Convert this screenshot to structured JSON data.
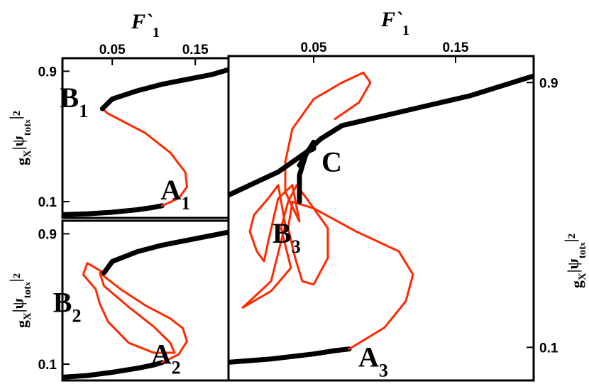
{
  "chart_data": [
    {
      "type": "line",
      "panel": "top-left",
      "xlabel": {
        "symbol": "F`",
        "subscript": "1"
      },
      "ylabel": {
        "base": "g",
        "sub1": "X",
        "abs": "|ψ",
        "sub2": "tot",
        "sub3": "x",
        "close": "|",
        "sup": "2"
      },
      "xticks": [
        {
          "value": 0.05,
          "label": "0.05"
        },
        {
          "value": 0.15,
          "label": "0.15"
        }
      ],
      "yticks": [
        {
          "value": 0.9,
          "label": "0.9"
        },
        {
          "value": 0.1,
          "label": "0.1"
        }
      ],
      "xlim": [
        -0.01,
        0.19
      ],
      "ylim": [
        0.0,
        0.98
      ],
      "colors": {
        "stable": "#000000",
        "unstable": "#ff2a00"
      },
      "points": [
        {
          "name": "B",
          "sub": "1",
          "x": 0.04,
          "y": 0.68
        },
        {
          "name": "A",
          "sub": "1",
          "x": 0.11,
          "y": 0.07
        }
      ],
      "series": [
        {
          "stability": "stable",
          "x": [
            -0.01,
            0.02,
            0.05,
            0.08,
            0.1,
            0.11
          ],
          "y": [
            0.02,
            0.025,
            0.035,
            0.05,
            0.065,
            0.075
          ]
        },
        {
          "stability": "unstable",
          "x": [
            0.11,
            0.13,
            0.14,
            0.138,
            0.12,
            0.09,
            0.06,
            0.045,
            0.038
          ],
          "y": [
            0.075,
            0.12,
            0.19,
            0.28,
            0.4,
            0.52,
            0.6,
            0.64,
            0.67
          ]
        },
        {
          "stability": "stable",
          "x": [
            0.038,
            0.05,
            0.08,
            0.11,
            0.14,
            0.17,
            0.19
          ],
          "y": [
            0.67,
            0.73,
            0.78,
            0.82,
            0.85,
            0.88,
            0.91
          ]
        }
      ]
    },
    {
      "type": "line",
      "panel": "bottom-left",
      "ylabel": {
        "base": "g",
        "sub1": "X",
        "abs": "|ψ",
        "sub2": "tot",
        "sub3": "x",
        "close": "|",
        "sup": "2"
      },
      "yticks": [
        {
          "value": 0.9,
          "label": "0.9"
        },
        {
          "value": 0.1,
          "label": "0.1"
        }
      ],
      "xlim": [
        -0.01,
        0.19
      ],
      "ylim": [
        0.0,
        0.98
      ],
      "colors": {
        "stable": "#000000",
        "unstable": "#ff2a00"
      },
      "points": [
        {
          "name": "B",
          "sub": "2",
          "x": 0.03,
          "y": 0.43
        },
        {
          "name": "A",
          "sub": "2",
          "x": 0.1,
          "y": 0.11
        }
      ],
      "series": [
        {
          "stability": "stable",
          "x": [
            -0.01,
            0.02,
            0.05,
            0.08,
            0.1,
            0.11
          ],
          "y": [
            0.02,
            0.03,
            0.05,
            0.075,
            0.095,
            0.11
          ]
        },
        {
          "stability": "unstable",
          "x": [
            0.11,
            0.13,
            0.14,
            0.135,
            0.12,
            0.09,
            0.06,
            0.045,
            0.035,
            0.04,
            0.07,
            0.1,
            0.12,
            0.125,
            0.1,
            0.07,
            0.045,
            0.035,
            0.03,
            0.015,
            0.02,
            0.04
          ],
          "y": [
            0.11,
            0.16,
            0.24,
            0.32,
            0.38,
            0.46,
            0.56,
            0.62,
            0.66,
            0.58,
            0.45,
            0.33,
            0.23,
            0.17,
            0.17,
            0.23,
            0.36,
            0.47,
            0.56,
            0.65,
            0.72,
            0.66
          ]
        },
        {
          "stability": "stable",
          "x": [
            0.04,
            0.05,
            0.08,
            0.11,
            0.14,
            0.17,
            0.19
          ],
          "y": [
            0.66,
            0.73,
            0.79,
            0.83,
            0.86,
            0.89,
            0.91
          ]
        }
      ]
    },
    {
      "type": "line",
      "panel": "right",
      "xlabel": {
        "symbol": "F`",
        "subscript": "1"
      },
      "ylabel": {
        "base": "g",
        "sub1": "X",
        "abs": "|ψ",
        "sub2": "tot",
        "sub3": "x",
        "close": "|",
        "sup": "2"
      },
      "xticks": [
        {
          "value": 0.05,
          "label": "0.05"
        },
        {
          "value": 0.15,
          "label": "0.15"
        }
      ],
      "yticks": [
        {
          "value": 0.9,
          "label": "0.9"
        },
        {
          "value": 0.1,
          "label": "0.1"
        }
      ],
      "xlim": [
        -0.01,
        0.205
      ],
      "ylim": [
        0.0,
        0.98
      ],
      "colors": {
        "stable": "#000000",
        "unstable": "#ff2a00"
      },
      "points": [
        {
          "name": "C",
          "sub": "",
          "x": 0.059,
          "y": 0.64
        },
        {
          "name": "B",
          "sub": "3",
          "x": 0.02,
          "y": 0.48
        },
        {
          "name": "A",
          "sub": "3",
          "x": 0.083,
          "y": 0.08
        }
      ],
      "series": [
        {
          "stability": "stable",
          "x": [
            -0.01,
            0.02,
            0.05,
            0.065,
            0.075
          ],
          "y": [
            0.055,
            0.065,
            0.08,
            0.09,
            0.095
          ]
        },
        {
          "stability": "unstable",
          "x": [
            0.075,
            0.1,
            0.115,
            0.12,
            0.11,
            0.08,
            0.05,
            0.035,
            0.032,
            0.037,
            0.042,
            0.05,
            0.06,
            0.06,
            0.045,
            0.038
          ],
          "y": [
            0.095,
            0.16,
            0.24,
            0.32,
            0.39,
            0.45,
            0.52,
            0.54,
            0.46,
            0.37,
            0.3,
            0.29,
            0.37,
            0.46,
            0.55,
            0.59
          ]
        },
        {
          "stability": "unstable",
          "x": [
            0.038,
            0.032,
            0.027,
            0.034,
            0.02,
            0.0,
            0.01,
            0.02,
            0.03,
            0.025,
            0.018,
            0.008,
            0.005,
            0.01,
            0.015,
            0.018,
            0.025,
            0.035
          ],
          "y": [
            0.59,
            0.54,
            0.46,
            0.34,
            0.27,
            0.22,
            0.26,
            0.3,
            0.47,
            0.59,
            0.55,
            0.5,
            0.45,
            0.39,
            0.36,
            0.42,
            0.55,
            0.59
          ]
        },
        {
          "stability": "unstable",
          "x": [
            0.035,
            0.04,
            0.03,
            0.03,
            0.035,
            0.05,
            0.07,
            0.085,
            0.09,
            0.082,
            0.065
          ],
          "y": [
            0.59,
            0.48,
            0.57,
            0.66,
            0.76,
            0.85,
            0.9,
            0.93,
            0.9,
            0.84,
            0.79
          ]
        },
        {
          "stability": "stable",
          "x": [
            -0.01,
            0.01,
            0.025,
            0.035,
            0.045,
            0.05,
            0.05,
            0.04
          ],
          "y": [
            0.56,
            0.6,
            0.63,
            0.66,
            0.69,
            0.7,
            0.72,
            0.65
          ]
        },
        {
          "stability": "stable",
          "x": [
            0.04,
            0.04,
            0.045,
            0.055,
            0.07,
            0.1,
            0.13,
            0.16,
            0.19,
            0.205
          ],
          "y": [
            0.54,
            0.62,
            0.69,
            0.73,
            0.77,
            0.8,
            0.83,
            0.86,
            0.9,
            0.92
          ]
        }
      ]
    }
  ]
}
